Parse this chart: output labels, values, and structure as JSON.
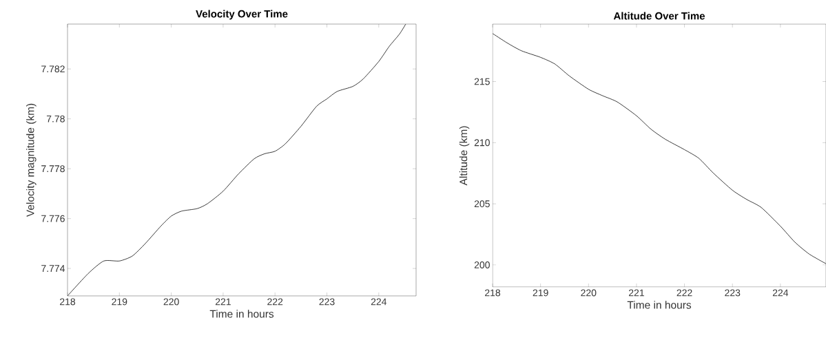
{
  "chart_data": [
    {
      "type": "line",
      "title": "Velocity Over Time",
      "xlabel": "Time in hours",
      "ylabel": "Velocity magnitude (km)",
      "color": "#262626",
      "x": [
        218.0,
        218.4,
        218.7,
        219.0,
        219.25,
        219.5,
        219.8,
        220.0,
        220.2,
        220.5,
        220.7,
        221.0,
        221.3,
        221.6,
        221.8,
        222.0,
        222.2,
        222.5,
        222.8,
        223.0,
        223.2,
        223.5,
        223.7,
        224.0,
        224.2,
        224.4,
        224.52
      ],
      "values": [
        7.7729,
        7.7738,
        7.7743,
        7.7743,
        7.7745,
        7.775,
        7.7757,
        7.7761,
        7.7763,
        7.7764,
        7.7766,
        7.7771,
        7.7778,
        7.7784,
        7.7786,
        7.7787,
        7.779,
        7.7797,
        7.7805,
        7.7808,
        7.7811,
        7.7813,
        7.7816,
        7.7823,
        7.7829,
        7.7834,
        7.7838
      ],
      "xlim": [
        218,
        224.72
      ],
      "ylim": [
        7.7729,
        7.7838
      ],
      "xticks": [
        218,
        219,
        220,
        221,
        222,
        223,
        224
      ],
      "yticks": [
        7.774,
        7.776,
        7.778,
        7.78,
        7.782
      ]
    },
    {
      "type": "line",
      "title": "Altitude Over Time",
      "xlabel": "Time in hours",
      "ylabel": "Altitude (km)",
      "color": "#262626",
      "x": [
        218.0,
        218.3,
        218.6,
        219.0,
        219.3,
        219.6,
        220.0,
        220.3,
        220.6,
        221.0,
        221.3,
        221.6,
        222.0,
        222.3,
        222.6,
        223.0,
        223.3,
        223.6,
        224.0,
        224.3,
        224.6,
        224.95
      ],
      "values": [
        218.93,
        218.17,
        217.52,
        216.98,
        216.43,
        215.46,
        214.37,
        213.83,
        213.33,
        212.2,
        211.11,
        210.28,
        209.43,
        208.72,
        207.52,
        206.11,
        205.35,
        204.7,
        203.17,
        201.87,
        200.89,
        200.1
      ],
      "xlim": [
        218,
        224.95
      ],
      "ylim": [
        198.2,
        219.7
      ],
      "xticks": [
        218,
        219,
        220,
        221,
        222,
        223,
        224
      ],
      "yticks": [
        200,
        205,
        210,
        215
      ]
    }
  ]
}
